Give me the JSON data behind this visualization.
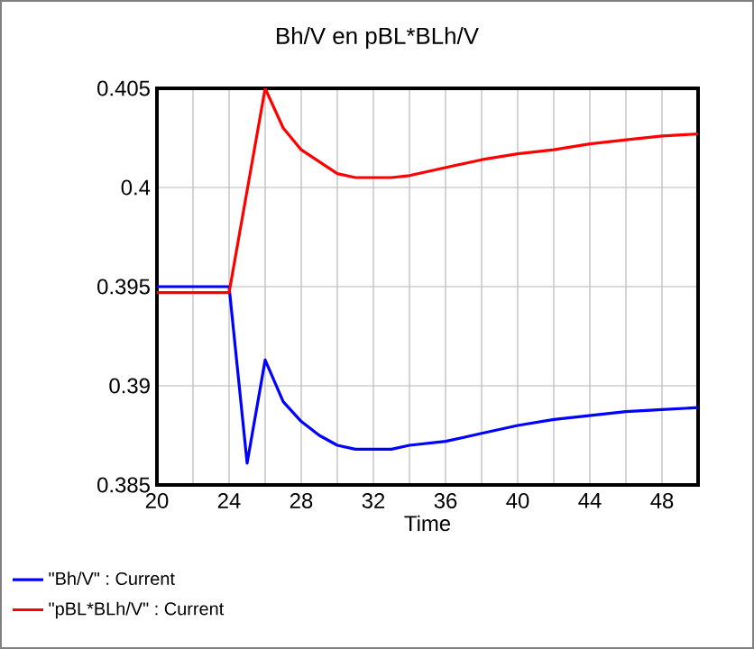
{
  "chart_data": {
    "type": "line",
    "title": "Bh/V en pBL*BLh/V",
    "xlabel": "Time",
    "xlim": [
      20,
      50
    ],
    "ylim": [
      0.385,
      0.405
    ],
    "xticks": [
      20,
      {
        "value": 22,
        "label": null
      },
      24,
      {
        "value": 26,
        "label": null
      },
      28,
      {
        "value": 30,
        "label": null
      },
      32,
      {
        "value": 34,
        "label": null
      },
      36,
      {
        "value": 38,
        "label": null
      },
      40,
      {
        "value": 42,
        "label": null
      },
      44,
      {
        "value": 46,
        "label": null
      },
      48,
      {
        "value": 50,
        "label": null
      }
    ],
    "yticks": [
      0.385,
      0.39,
      0.395,
      0.4,
      0.405
    ],
    "grid": true,
    "legend": "bottom",
    "line_style": "solid",
    "series": [
      {
        "name": "\"Bh/V\" : Current",
        "color": "#0000ff",
        "x": [
          20,
          24,
          25,
          26,
          27,
          28,
          29,
          30,
          31,
          32,
          33,
          34,
          36,
          38,
          40,
          42,
          44,
          46,
          48,
          50
        ],
        "values": [
          0.395,
          0.395,
          0.3861,
          0.3913,
          0.3892,
          0.3882,
          0.3875,
          0.387,
          0.3868,
          0.3868,
          0.3868,
          0.387,
          0.3872,
          0.3876,
          0.388,
          0.3883,
          0.3885,
          0.3887,
          0.3888,
          0.3889
        ]
      },
      {
        "name": "\"pBL*BLh/V\" : Current",
        "color": "#ff0000",
        "x": [
          20,
          24,
          26,
          27,
          28,
          29,
          30,
          31,
          32,
          33,
          34,
          36,
          38,
          40,
          42,
          44,
          46,
          48,
          50
        ],
        "values": [
          0.3947,
          0.3947,
          0.405,
          0.403,
          0.4019,
          0.4013,
          0.4007,
          0.4005,
          0.4005,
          0.4005,
          0.4006,
          0.401,
          0.4014,
          0.4017,
          0.4019,
          0.4022,
          0.4024,
          0.4026,
          0.4027
        ]
      }
    ]
  }
}
